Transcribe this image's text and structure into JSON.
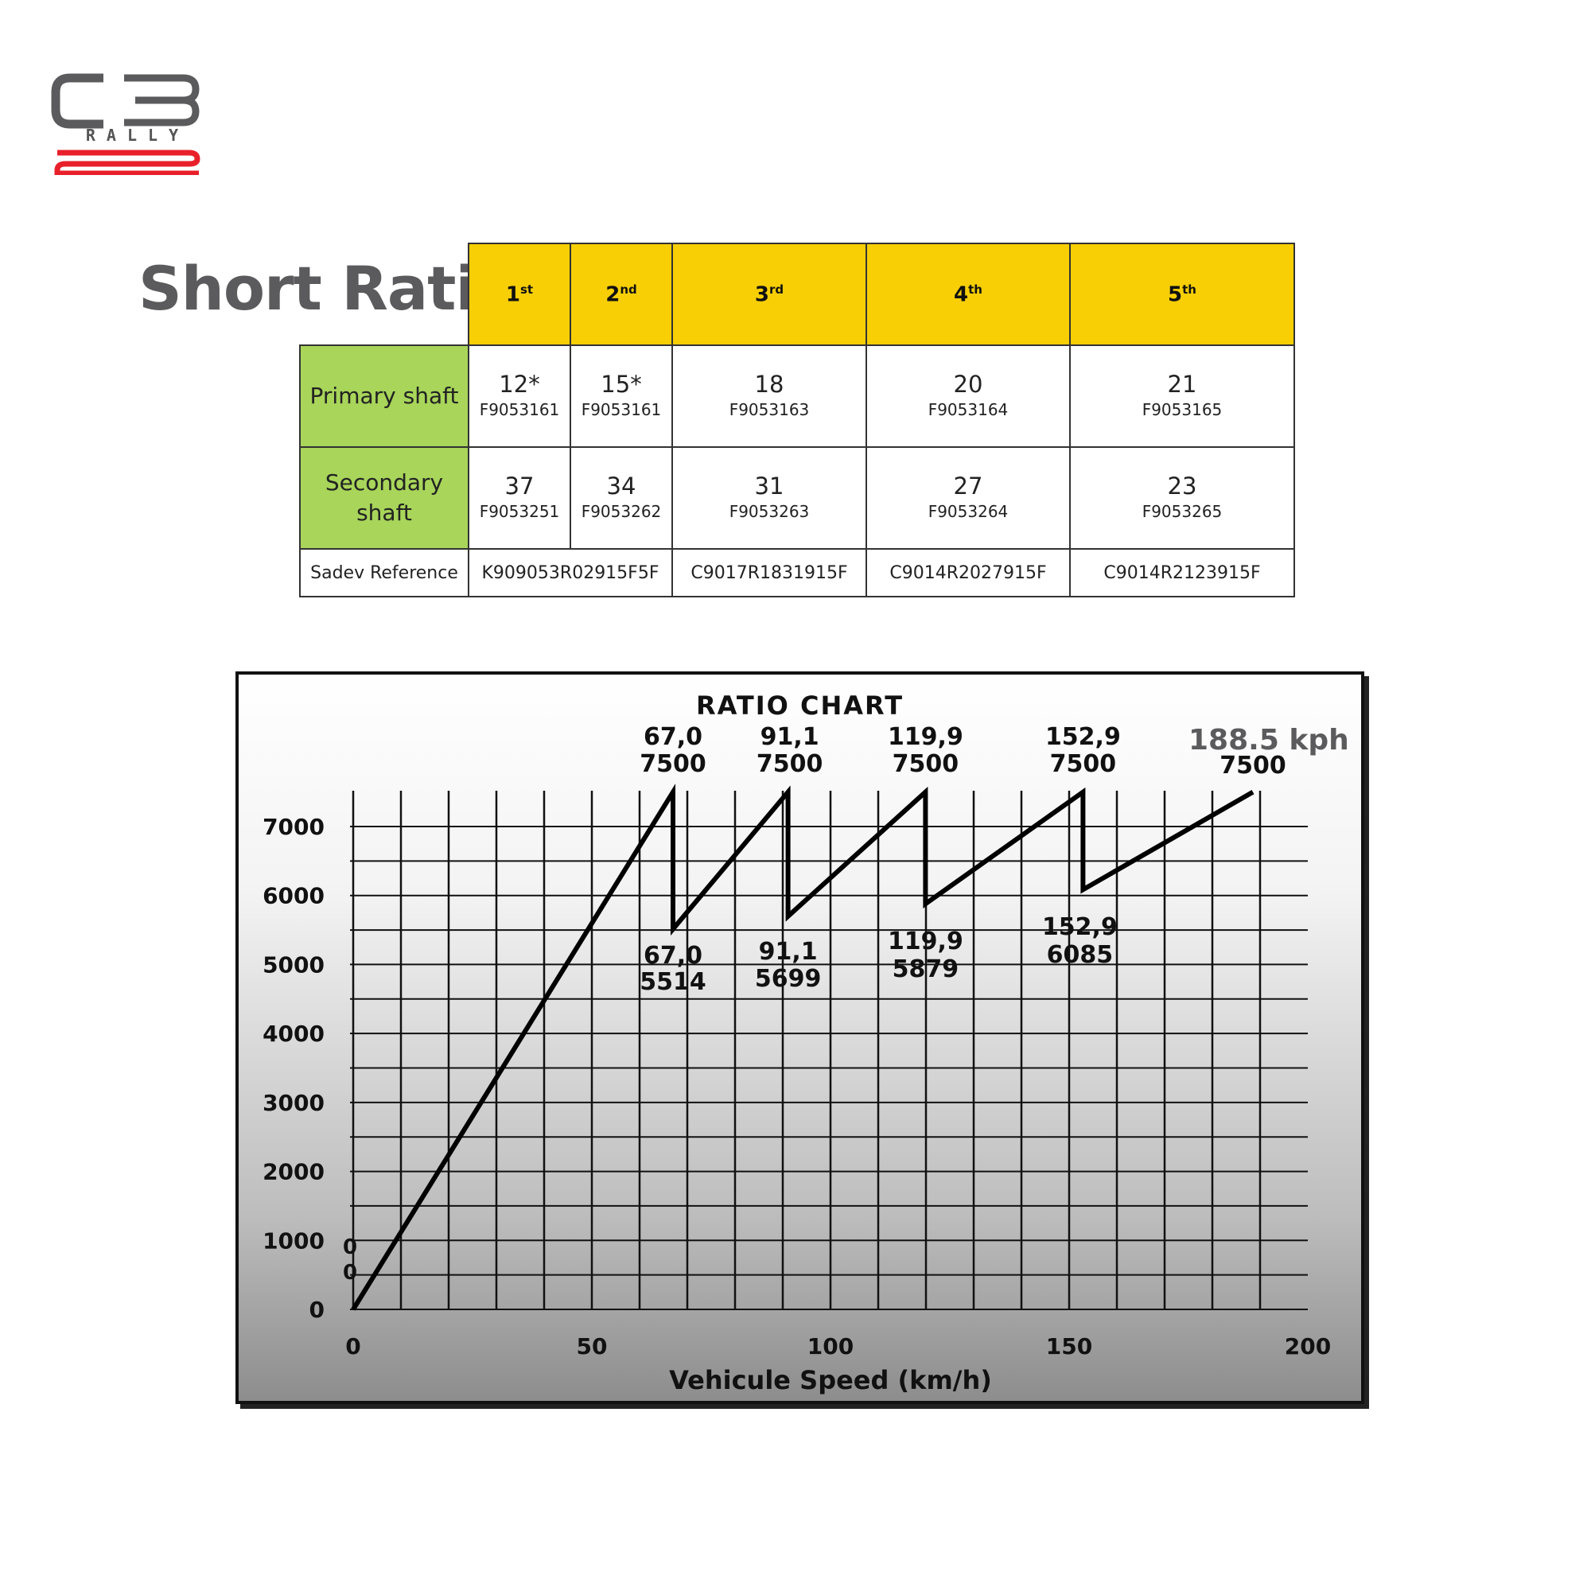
{
  "brand": {
    "logo_main": "C3",
    "logo_sub": "RALLY",
    "logo_number": "2",
    "accent_color": "#e8202a"
  },
  "section_title": "Short Ratio",
  "gear_table": {
    "headers": [
      {
        "num": "1",
        "sup": "st"
      },
      {
        "num": "2",
        "sup": "nd"
      },
      {
        "num": "3",
        "sup": "rd"
      },
      {
        "num": "4",
        "sup": "th"
      },
      {
        "num": "5",
        "sup": "th"
      }
    ],
    "primary_label": "Primary shaft",
    "primary": [
      {
        "teeth": "12*",
        "part": "F9053161"
      },
      {
        "teeth": "15*",
        "part": "F9053161"
      },
      {
        "teeth": "18",
        "part": "F9053163"
      },
      {
        "teeth": "20",
        "part": "F9053164"
      },
      {
        "teeth": "21",
        "part": "F9053165"
      }
    ],
    "secondary_label": "Secondary shaft",
    "secondary": [
      {
        "teeth": "37",
        "part": "F9053251"
      },
      {
        "teeth": "34",
        "part": "F9053262"
      },
      {
        "teeth": "31",
        "part": "F9053263"
      },
      {
        "teeth": "27",
        "part": "F9053264"
      },
      {
        "teeth": "23",
        "part": "F9053265"
      }
    ],
    "sadev_label": "Sadev Reference",
    "sadev_refs": [
      "K909053R02915F5F",
      "C9017R1831915F",
      "C9014R2027915F",
      "C9014R2123915F"
    ],
    "header_color": "#f8cf05",
    "row_head_color": "#a8d55a"
  },
  "chart_data": {
    "type": "line",
    "title": "RATIO CHART",
    "xlabel": "Vehicule Speed (km/h)",
    "ylabel": "",
    "xlim": [
      0,
      200
    ],
    "ylim": [
      0,
      7000
    ],
    "x_ticks": [
      "0",
      "50",
      "100",
      "150",
      "200"
    ],
    "y_ticks": [
      "0",
      "1000",
      "2000",
      "3000",
      "4000",
      "5000",
      "6000",
      "7000"
    ],
    "grid": true,
    "x": [
      0,
      67.0,
      67.0,
      91.1,
      91.1,
      119.9,
      119.9,
      152.9,
      152.9,
      188.5
    ],
    "y": [
      0,
      7500,
      5514,
      7500,
      5699,
      7500,
      5879,
      7500,
      6085,
      7500
    ],
    "upper_labels": [
      {
        "speed": "67,0",
        "rpm": "7500"
      },
      {
        "speed": "91,1",
        "rpm": "7500"
      },
      {
        "speed": "119,9",
        "rpm": "7500"
      },
      {
        "speed": "152,9",
        "rpm": "7500"
      }
    ],
    "lower_labels": [
      {
        "speed": "67,0",
        "rpm": "5514"
      },
      {
        "speed": "91,1",
        "rpm": "5699"
      },
      {
        "speed": "119,9",
        "rpm": "5879"
      },
      {
        "speed": "152,9",
        "rpm": "6085"
      }
    ],
    "origin_labels": [
      "0",
      "0"
    ],
    "final_speed_label": "188.5 kph",
    "final_rpm_label": "7500"
  }
}
